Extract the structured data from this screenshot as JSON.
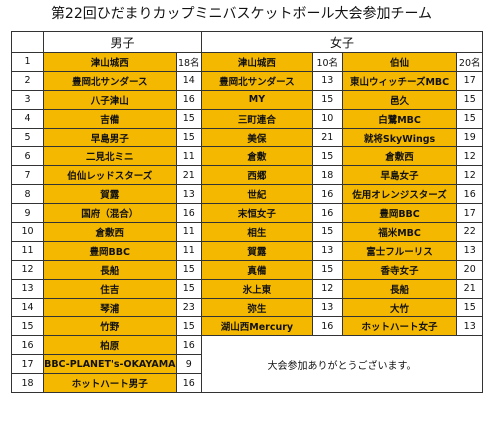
{
  "title": "第22回ひだまりカップミニバスケットボール大会参加チーム",
  "headers": {
    "boys": "男子",
    "girls": "女子"
  },
  "rows": [
    {
      "no": "1",
      "b": "津山城西",
      "bc": "18名",
      "g1": "津山城西",
      "g1c": "10名",
      "g2": "伯仙",
      "g2c": "20名"
    },
    {
      "no": "2",
      "b": "豊岡北サンダース",
      "bc": "14",
      "g1": "豊岡北サンダース",
      "g1c": "13",
      "g2": "東山ウィッチーズMBC",
      "g2c": "17"
    },
    {
      "no": "3",
      "b": "八子津山",
      "bc": "16",
      "g1": "MY",
      "g1c": "15",
      "g2": "邑久",
      "g2c": "15"
    },
    {
      "no": "4",
      "b": "吉備",
      "bc": "15",
      "g1": "三町連合",
      "g1c": "10",
      "g2": "白鷺MBC",
      "g2c": "15"
    },
    {
      "no": "5",
      "b": "早島男子",
      "bc": "15",
      "g1": "美保",
      "g1c": "21",
      "g2": "就将SkyWings",
      "g2c": "19"
    },
    {
      "no": "6",
      "b": "二見北ミニ",
      "bc": "11",
      "g1": "倉敷",
      "g1c": "15",
      "g2": "倉敷西",
      "g2c": "12"
    },
    {
      "no": "7",
      "b": "伯仙レッドスターズ",
      "bc": "21",
      "g1": "西郷",
      "g1c": "18",
      "g2": "早島女子",
      "g2c": "12"
    },
    {
      "no": "8",
      "b": "賀露",
      "bc": "13",
      "g1": "世紀",
      "g1c": "16",
      "g2": "佐用オレンジスターズ",
      "g2c": "16"
    },
    {
      "no": "9",
      "b": "国府（混合）",
      "bc": "16",
      "g1": "末恒女子",
      "g1c": "16",
      "g2": "豊岡BBC",
      "g2c": "17"
    },
    {
      "no": "10",
      "b": "倉敷西",
      "bc": "11",
      "g1": "相生",
      "g1c": "15",
      "g2": "福米MBC",
      "g2c": "22"
    },
    {
      "no": "11",
      "b": "豊岡BBC",
      "bc": "11",
      "g1": "賀露",
      "g1c": "13",
      "g2": "富士フルーリス",
      "g2c": "13"
    },
    {
      "no": "12",
      "b": "長船",
      "bc": "15",
      "g1": "真備",
      "g1c": "15",
      "g2": "香寺女子",
      "g2c": "20"
    },
    {
      "no": "13",
      "b": "住吉",
      "bc": "15",
      "g1": "氷上東",
      "g1c": "12",
      "g2": "長船",
      "g2c": "21"
    },
    {
      "no": "14",
      "b": "琴浦",
      "bc": "23",
      "g1": "弥生",
      "g1c": "13",
      "g2": "大竹",
      "g2c": "15"
    },
    {
      "no": "15",
      "b": "竹野",
      "bc": "15",
      "g1": "湖山西Mercury",
      "g1c": "16",
      "g2": "ホットハート女子",
      "g2c": "13"
    },
    {
      "no": "16",
      "b": "柏原",
      "bc": "16"
    },
    {
      "no": "17",
      "b": "BBC-PLANET's-OKAYAMA",
      "bc": "9"
    },
    {
      "no": "18",
      "b": "ホットハート男子",
      "bc": "16"
    }
  ],
  "message": "大会参加ありがとうございます。",
  "colors": {
    "cell_fill": "#f5b800",
    "border": "#333333"
  }
}
